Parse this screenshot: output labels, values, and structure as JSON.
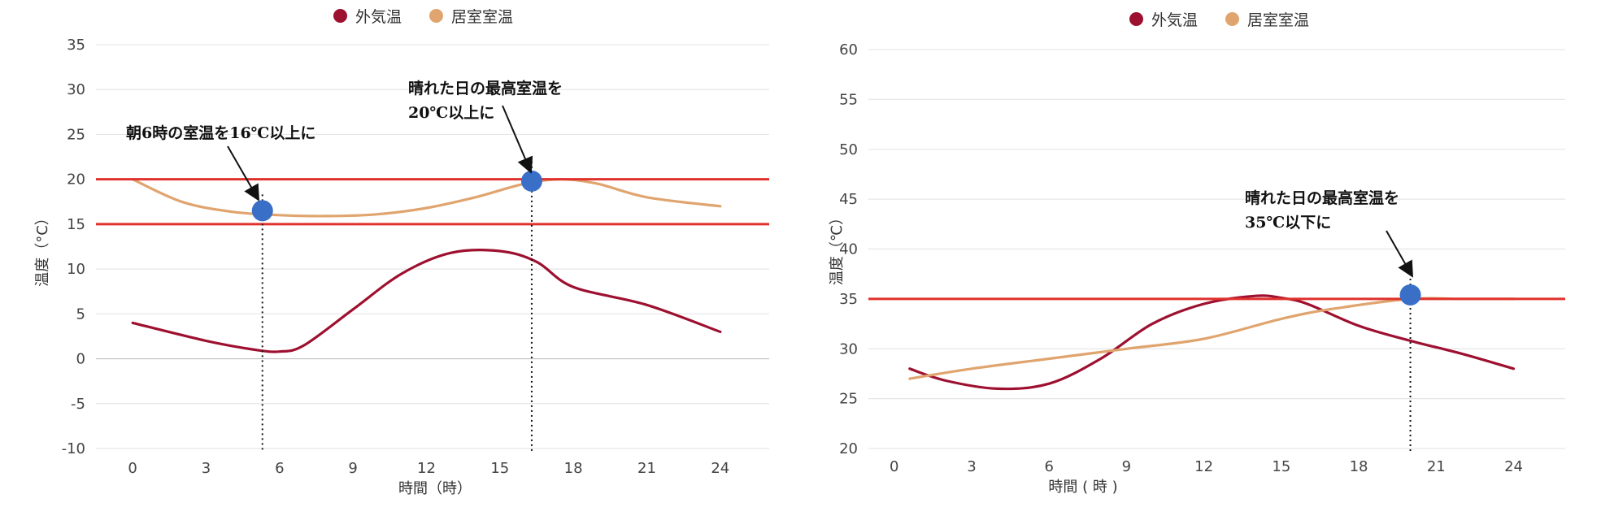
{
  "chart_data": [
    {
      "type": "line",
      "xlabel": "時間（時）",
      "ylabel": "温度（°C）",
      "xlim": [
        -1.5,
        26
      ],
      "ylim": [
        -10,
        35
      ],
      "x_ticks": [
        "0",
        "3",
        "6",
        "9",
        "12",
        "15",
        "18",
        "21",
        "24"
      ],
      "x_tick_values": [
        0,
        3,
        6,
        9,
        12,
        15,
        18,
        21,
        24
      ],
      "y_ticks": [
        "35",
        "30",
        "25",
        "20",
        "15",
        "10",
        "5",
        "0",
        "-5",
        "-10"
      ],
      "y_tick_values": [
        35,
        30,
        25,
        20,
        15,
        10,
        5,
        0,
        -5,
        -10
      ],
      "legend_position": "top-center",
      "grid": true,
      "series": [
        {
          "name": "外気温",
          "color": "#9e1030",
          "x": [
            0,
            3,
            5,
            6,
            7,
            9,
            11,
            13,
            15,
            16.5,
            18,
            21,
            24
          ],
          "values": [
            4,
            2,
            1,
            0.8,
            1.5,
            5.5,
            9.5,
            11.8,
            12,
            10.8,
            8,
            6,
            3
          ]
        },
        {
          "name": "居室室温",
          "color": "#e0a46e",
          "x": [
            0,
            2,
            4,
            6,
            8,
            10,
            12,
            14,
            16,
            17.5,
            19,
            21,
            24
          ],
          "values": [
            20,
            17.5,
            16.4,
            16,
            15.9,
            16.1,
            16.8,
            18,
            19.5,
            20,
            19.5,
            18,
            17
          ]
        }
      ],
      "reference_lines": [
        {
          "y": 20,
          "color": "#e0312c"
        },
        {
          "y": 15,
          "color": "#e0312c"
        }
      ],
      "points": [
        {
          "x": 5.3,
          "y": 16.5,
          "color": "#3a6fc8"
        },
        {
          "x": 16.3,
          "y": 19.8,
          "color": "#3a6fc8"
        }
      ],
      "annotations": [
        {
          "text": [
            "朝6時の室温を16℃以上に"
          ]
        },
        {
          "text": [
            "晴れた日の最高室温を",
            "20℃以上に"
          ]
        }
      ]
    },
    {
      "type": "line",
      "xlabel": "時間 ( 時 )",
      "ylabel": "温度（℃）",
      "xlim": [
        -1,
        26
      ],
      "ylim": [
        20,
        60
      ],
      "x_ticks": [
        "0",
        "3",
        "6",
        "9",
        "12",
        "15",
        "18",
        "21",
        "24"
      ],
      "x_tick_values": [
        0,
        3,
        6,
        9,
        12,
        15,
        18,
        21,
        24
      ],
      "y_ticks": [
        "60",
        "55",
        "50",
        "45",
        "40",
        "35",
        "30",
        "25",
        "20"
      ],
      "y_tick_values": [
        60,
        55,
        50,
        45,
        40,
        35,
        30,
        25,
        20
      ],
      "legend_position": "top-center",
      "grid": true,
      "series": [
        {
          "name": "外気温",
          "color": "#9e1030",
          "x": [
            0.6,
            2,
            4,
            6,
            8,
            10,
            12,
            14,
            15,
            16,
            18,
            20,
            22,
            24
          ],
          "values": [
            28,
            26.8,
            26,
            26.5,
            29,
            32.5,
            34.5,
            35.3,
            35.1,
            34.5,
            32.3,
            30.8,
            29.5,
            28
          ]
        },
        {
          "name": "居室室温",
          "color": "#e0a46e",
          "x": [
            0.6,
            3,
            6,
            9,
            12,
            15,
            17,
            20,
            22,
            24
          ],
          "values": [
            27,
            28,
            29,
            30,
            31,
            33,
            34,
            35,
            35,
            35
          ]
        }
      ],
      "reference_lines": [
        {
          "y": 35,
          "color": "#e0312c"
        }
      ],
      "points": [
        {
          "x": 20,
          "y": 35.4,
          "color": "#3a6fc8"
        }
      ],
      "annotations": [
        {
          "text": [
            "晴れた日の最高室温を",
            "35℃以下に"
          ]
        }
      ]
    }
  ]
}
